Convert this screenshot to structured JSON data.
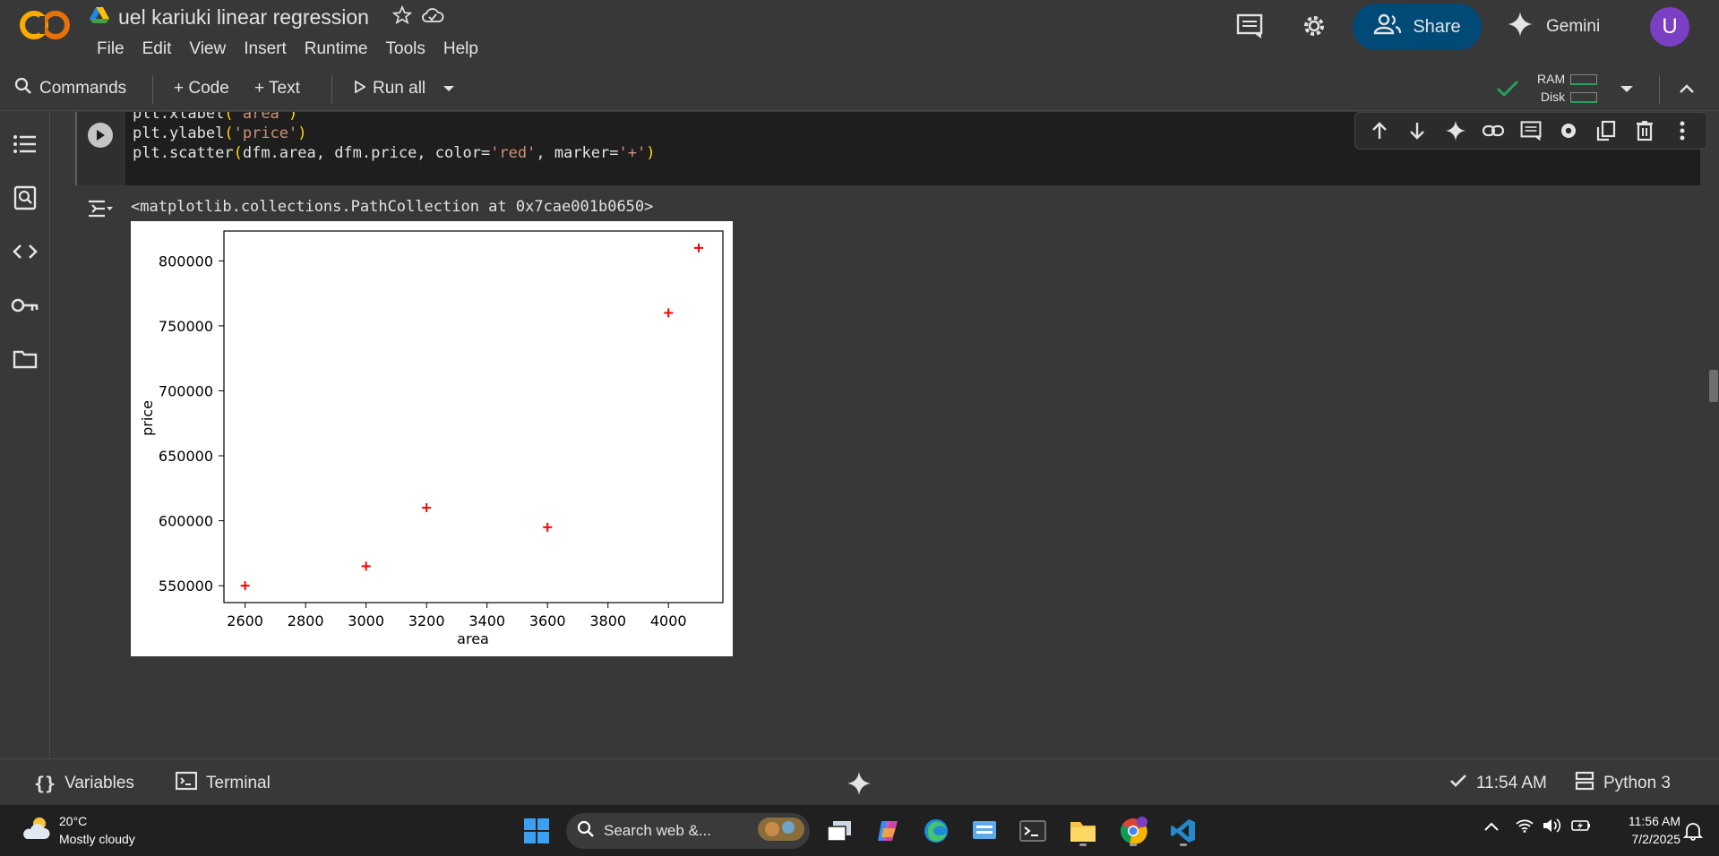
{
  "header": {
    "doc_title": "uel kariuki linear regression",
    "menu": [
      "File",
      "Edit",
      "View",
      "Insert",
      "Runtime",
      "Tools",
      "Help"
    ],
    "share_label": "Share",
    "gemini_label": "Gemini",
    "avatar_letter": "U"
  },
  "toolbar": {
    "commands_label": "Commands",
    "code_label": "+ Code",
    "text_label": "+ Text",
    "run_all_label": "Run all",
    "ram_label": "RAM",
    "disk_label": "Disk"
  },
  "cell": {
    "code_lines": [
      {
        "pre": "plt.xlabel",
        "open": "(",
        "str": "'area'",
        "rest": "",
        "close": ")"
      },
      {
        "pre": "plt.ylabel",
        "open": "(",
        "str": "'price'",
        "rest": "",
        "close": ")"
      },
      {
        "pre": "plt.scatter",
        "open": "(",
        "str": "",
        "rest": "dfm.area, dfm.price, color=",
        "close": ")"
      }
    ],
    "scatter_line": {
      "a": "plt.scatter",
      "b": "dfm.area, dfm.price, color=",
      "c": "'red'",
      "d": ", marker=",
      "e": "'+'"
    },
    "output_text": "<matplotlib.collections.PathCollection at 0x7cae001b0650>"
  },
  "chart_data": {
    "type": "scatter",
    "title": "",
    "xlabel": "area",
    "ylabel": "price",
    "x": [
      2600,
      3000,
      3200,
      3600,
      4000,
      4100
    ],
    "y": [
      550000,
      565000,
      610000,
      595000,
      760000,
      810000
    ],
    "marker": "+",
    "color": "#ff0000",
    "xlim": [
      2530,
      4180
    ],
    "ylim": [
      537000,
      823000
    ],
    "xticks": [
      2600,
      2800,
      3000,
      3200,
      3400,
      3600,
      3800,
      4000
    ],
    "yticks": [
      550000,
      600000,
      650000,
      700000,
      750000,
      800000
    ],
    "grid": false
  },
  "statusbar": {
    "variables_label": "Variables",
    "terminal_label": "Terminal",
    "exec_time": "11:54 AM",
    "runtime_label": "Python 3"
  },
  "taskbar": {
    "temperature": "20°C",
    "weather": "Mostly cloudy",
    "search_placeholder": "Search web &...",
    "time": "11:56 AM",
    "date": "7/2/2025"
  },
  "colors": {
    "accent_share": "#004a77",
    "avatar": "#7b3fc4",
    "success": "#27a05a",
    "marker_red": "#ff0000"
  }
}
